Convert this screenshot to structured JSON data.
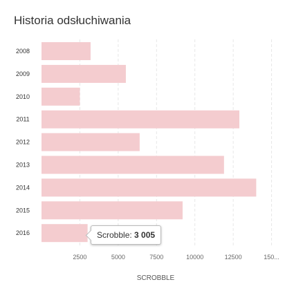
{
  "chart_data": {
    "type": "bar",
    "orientation": "horizontal",
    "title": "Historia odsłuchiwania",
    "xlabel": "SCROBBLE",
    "ylabel": "",
    "categories": [
      "2008",
      "2009",
      "2010",
      "2011",
      "2012",
      "2013",
      "2014",
      "2015",
      "2016"
    ],
    "values": [
      3200,
      5500,
      2500,
      12900,
      6400,
      11900,
      14000,
      9200,
      3005
    ],
    "x_ticks": [
      "2500",
      "5000",
      "7500",
      "10000",
      "12500",
      "150..."
    ],
    "xlim": [
      0,
      15000
    ],
    "grid": true,
    "bar_color": "#f4cccf",
    "grid_color": "#e6e6e6",
    "tooltip": {
      "label": "Scrobble:",
      "value": "3 005",
      "category": "2016"
    }
  }
}
